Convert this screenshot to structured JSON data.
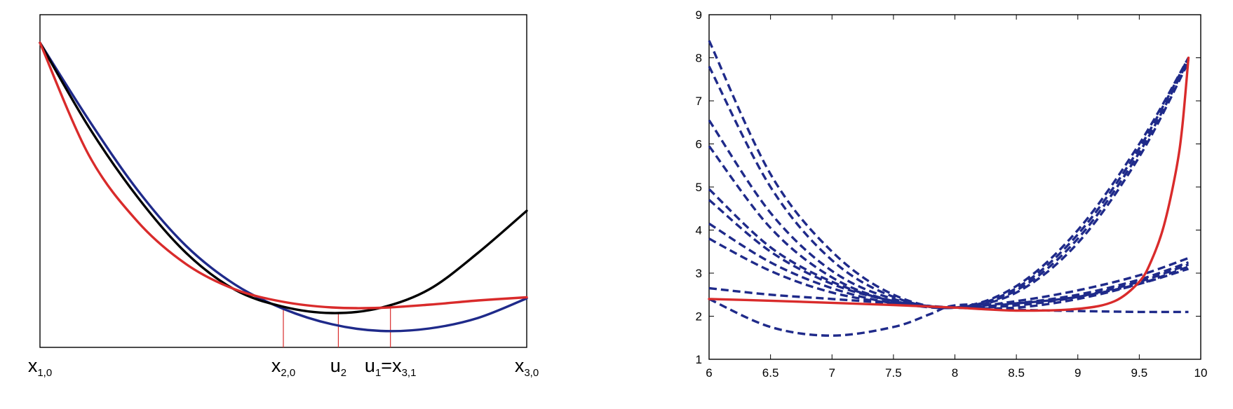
{
  "chart_data": [
    {
      "type": "line",
      "title": "",
      "xlabel": "",
      "ylabel": "",
      "xlim": [
        0,
        1
      ],
      "ylim": [
        0.05,
        1
      ],
      "series": [
        {
          "color": "#1f2a8a",
          "x": [
            0,
            0.1,
            0.2,
            0.3,
            0.4,
            0.5,
            0.6,
            0.7,
            0.8,
            0.9,
            1.0
          ],
          "y": [
            0.92,
            0.7,
            0.5,
            0.34,
            0.23,
            0.16,
            0.116,
            0.097,
            0.104,
            0.134,
            0.19
          ]
        },
        {
          "color": "#000000",
          "x": [
            0,
            0.1,
            0.2,
            0.3,
            0.4,
            0.5,
            0.6,
            0.7,
            0.8,
            0.9,
            1.0
          ],
          "y": [
            0.92,
            0.68,
            0.48,
            0.32,
            0.215,
            0.166,
            0.148,
            0.163,
            0.216,
            0.32,
            0.44
          ]
        },
        {
          "color": "#d92b2b",
          "x": [
            0,
            0.1,
            0.2,
            0.3,
            0.4,
            0.5,
            0.6,
            0.7,
            0.8,
            0.9,
            1.0
          ],
          "y": [
            0.92,
            0.6,
            0.41,
            0.288,
            0.216,
            0.18,
            0.164,
            0.163,
            0.172,
            0.184,
            0.193
          ]
        }
      ],
      "markers": [
        {
          "x": 0.5,
          "y": 0.166
        },
        {
          "x": 0.613,
          "y": 0.147
        },
        {
          "x": 0.72,
          "y": 0.164
        }
      ],
      "point_labels": [
        {
          "x": 0,
          "main": "x",
          "sub": "1,0"
        },
        {
          "x": 0.5,
          "main": "x",
          "sub": "2,0"
        },
        {
          "x": 0.613,
          "main": "u",
          "sub": "2"
        },
        {
          "x": 0.72,
          "main": "u",
          "sub": "1",
          "eq_main": "=x",
          "eq_sub": "3,1"
        },
        {
          "x": 1.0,
          "main": "x",
          "sub": "3,0"
        }
      ]
    },
    {
      "type": "line",
      "title": "",
      "xlabel": "",
      "ylabel": "",
      "xlim": [
        6,
        10
      ],
      "ylim": [
        1,
        9
      ],
      "xticks": [
        "6",
        "6.5",
        "7",
        "7.5",
        "8",
        "8.5",
        "9",
        "9.5",
        "10"
      ],
      "yticks": [
        "1",
        "2",
        "3",
        "4",
        "5",
        "6",
        "7",
        "8",
        "9"
      ],
      "dashed_series": [
        {
          "color": "#1f2a8a",
          "x": [
            6,
            6.5,
            7,
            7.5,
            8,
            8.5,
            9,
            9.5,
            9.9
          ],
          "y": [
            8.4,
            5.3,
            3.5,
            2.5,
            2.2,
            2.65,
            3.9,
            5.9,
            8.0
          ]
        },
        {
          "color": "#1f2a8a",
          "x": [
            6,
            6.5,
            7,
            7.5,
            8,
            8.5,
            9,
            9.5,
            9.9
          ],
          "y": [
            7.8,
            5.0,
            3.3,
            2.45,
            2.2,
            2.7,
            4.0,
            6.0,
            8.0
          ]
        },
        {
          "color": "#1f2a8a",
          "x": [
            6,
            6.5,
            7,
            7.5,
            8,
            8.5,
            9,
            9.5,
            9.9
          ],
          "y": [
            6.55,
            4.4,
            3.05,
            2.4,
            2.2,
            2.6,
            3.8,
            5.8,
            7.95
          ]
        },
        {
          "color": "#1f2a8a",
          "x": [
            6,
            6.5,
            7,
            7.5,
            8,
            8.5,
            9,
            9.5,
            9.9
          ],
          "y": [
            5.95,
            4.05,
            2.9,
            2.35,
            2.2,
            2.55,
            3.7,
            5.7,
            7.9
          ]
        },
        {
          "color": "#1f2a8a",
          "x": [
            6,
            6.5,
            7,
            7.5,
            8,
            8.5,
            9,
            9.5,
            9.9
          ],
          "y": [
            4.95,
            3.6,
            2.8,
            2.35,
            2.2,
            2.35,
            2.6,
            2.95,
            3.35
          ]
        },
        {
          "color": "#1f2a8a",
          "x": [
            6,
            6.5,
            7,
            7.5,
            8,
            8.5,
            9,
            9.5,
            9.9
          ],
          "y": [
            4.7,
            3.5,
            2.75,
            2.35,
            2.2,
            2.3,
            2.5,
            2.85,
            3.25
          ]
        },
        {
          "color": "#1f2a8a",
          "x": [
            6,
            6.5,
            7,
            7.5,
            8,
            8.5,
            9,
            9.5,
            9.9
          ],
          "y": [
            4.15,
            3.25,
            2.65,
            2.3,
            2.2,
            2.25,
            2.45,
            2.8,
            3.2
          ]
        },
        {
          "color": "#1f2a8a",
          "x": [
            6,
            6.5,
            7,
            7.5,
            8,
            8.5,
            9,
            9.5,
            9.9
          ],
          "y": [
            3.8,
            3.05,
            2.55,
            2.3,
            2.2,
            2.2,
            2.4,
            2.75,
            3.15
          ]
        },
        {
          "color": "#1f2a8a",
          "x": [
            6,
            6.5,
            7,
            7.5,
            8,
            8.5,
            9,
            9.5,
            9.9
          ],
          "y": [
            2.65,
            2.5,
            2.4,
            2.3,
            2.2,
            2.15,
            2.12,
            2.1,
            2.1
          ]
        },
        {
          "color": "#1f2a8a",
          "x": [
            6,
            6.5,
            7,
            7.5,
            7.8,
            8,
            8.5,
            9,
            9.5,
            9.9
          ],
          "y": [
            2.4,
            1.75,
            1.55,
            1.75,
            2.05,
            2.25,
            2.3,
            2.45,
            2.75,
            3.1
          ]
        }
      ],
      "solid_series": [
        {
          "color": "#d92b2b",
          "x": [
            6,
            6.5,
            7,
            7.5,
            8,
            8.5,
            9,
            9.3,
            9.5,
            9.6,
            9.7,
            9.8,
            9.85,
            9.9
          ],
          "y": [
            2.4,
            2.36,
            2.31,
            2.26,
            2.2,
            2.13,
            2.17,
            2.35,
            2.8,
            3.3,
            4.1,
            5.4,
            6.4,
            8.0
          ]
        }
      ]
    }
  ]
}
